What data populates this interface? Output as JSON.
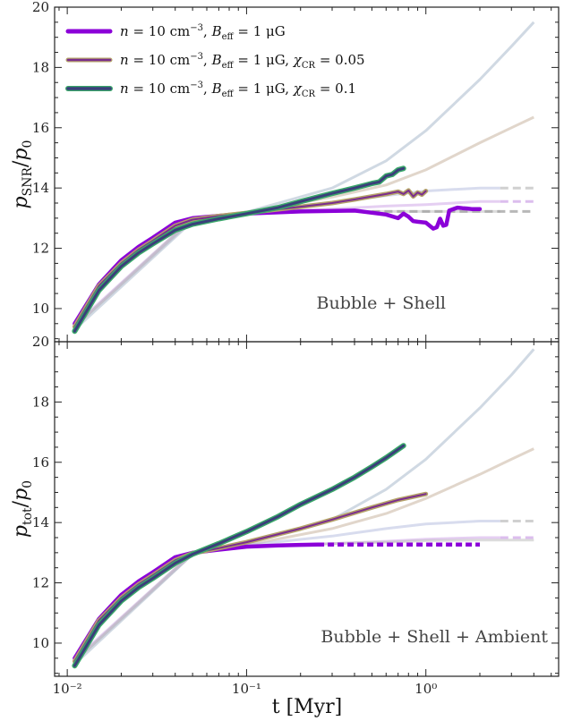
{
  "chart_data": [
    {
      "type": "line",
      "panel": "top",
      "ylabel": "p_SNR/p_0",
      "xscale": "log",
      "xlim": [
        0.0085,
        5.5
      ],
      "ylim": [
        8.9,
        20.0
      ],
      "yticks": [
        10,
        12,
        14,
        16,
        18,
        20
      ],
      "annotation": "Bubble + Shell",
      "legend": {
        "position": "top-left",
        "entries": [
          "n = 10 cm⁻³, B_eff = 1 μG",
          "n = 10 cm⁻³, B_eff = 1 μG, χ_CR = 0.05",
          "n = 10 cm⁻³, B_eff = 1 μG, χ_CR = 0.1"
        ]
      },
      "series": [
        {
          "color": "#8b00d8",
          "edge": "#8b00d8",
          "width": 4.5,
          "x": [
            0.011,
            0.015,
            0.02,
            0.025,
            0.03,
            0.04,
            0.05,
            0.07,
            0.1,
            0.2,
            0.4,
            0.5,
            0.6,
            0.7,
            0.75,
            0.8,
            0.85,
            0.9,
            1.0,
            1.1,
            1.15,
            1.2,
            1.25,
            1.3,
            1.35,
            1.5,
            1.6,
            1.7,
            1.8,
            1.9,
            2.0
          ],
          "y": [
            9.5,
            10.8,
            11.6,
            12.05,
            12.35,
            12.85,
            13.0,
            13.08,
            13.15,
            13.22,
            13.25,
            13.18,
            13.12,
            13.0,
            13.15,
            13.05,
            12.9,
            12.88,
            12.85,
            12.65,
            12.7,
            12.98,
            12.75,
            12.78,
            13.25,
            13.35,
            13.33,
            13.32,
            13.3,
            13.3,
            13.3
          ]
        },
        {
          "color": "#7b2d8e",
          "edge": "#b5a36a",
          "width": 3.5,
          "x": [
            0.011,
            0.015,
            0.02,
            0.025,
            0.03,
            0.04,
            0.05,
            0.07,
            0.1,
            0.2,
            0.3,
            0.4,
            0.5,
            0.6,
            0.7,
            0.75,
            0.8,
            0.85,
            0.9,
            0.95,
            1.0
          ],
          "y": [
            9.4,
            10.75,
            11.5,
            11.95,
            12.25,
            12.75,
            12.95,
            13.07,
            13.17,
            13.38,
            13.5,
            13.62,
            13.72,
            13.8,
            13.88,
            13.8,
            13.92,
            13.72,
            13.85,
            13.78,
            13.9
          ]
        },
        {
          "color": "#3a3f7a",
          "edge": "#3aa86a",
          "width": 4.5,
          "x": [
            0.011,
            0.015,
            0.02,
            0.025,
            0.03,
            0.04,
            0.05,
            0.07,
            0.1,
            0.15,
            0.2,
            0.3,
            0.4,
            0.5,
            0.55,
            0.6,
            0.65,
            0.7,
            0.75
          ],
          "y": [
            9.25,
            10.6,
            11.4,
            11.85,
            12.15,
            12.6,
            12.8,
            12.98,
            13.15,
            13.35,
            13.55,
            13.82,
            14.0,
            14.15,
            14.2,
            14.4,
            14.45,
            14.6,
            14.65
          ]
        }
      ]
    },
    {
      "type": "line",
      "panel": "bottom",
      "xlabel": "t [Myr]",
      "ylabel": "p_tot/p_0",
      "xscale": "log",
      "xlim": [
        0.0085,
        5.5
      ],
      "ylim": [
        8.9,
        20.0
      ],
      "yticks": [
        10,
        12,
        14,
        16,
        18,
        20
      ],
      "xticks": [
        "10⁻²",
        "10⁻¹",
        "10⁰"
      ],
      "annotation": "Bubble + Shell + Ambient",
      "series": [
        {
          "color": "#8b00d8",
          "edge": "#8b00d8",
          "width": 4.5,
          "x": [
            0.011,
            0.015,
            0.02,
            0.025,
            0.03,
            0.04,
            0.05,
            0.07,
            0.1,
            0.15,
            0.2,
            0.25
          ],
          "y": [
            9.5,
            10.8,
            11.6,
            12.05,
            12.35,
            12.85,
            13.0,
            13.1,
            13.2,
            13.24,
            13.26,
            13.27
          ]
        },
        {
          "color": "#7b2d8e",
          "edge": "#b5a36a",
          "width": 3.5,
          "x": [
            0.011,
            0.015,
            0.02,
            0.025,
            0.03,
            0.04,
            0.05,
            0.07,
            0.1,
            0.2,
            0.3,
            0.5,
            0.7,
            1.0
          ],
          "y": [
            9.4,
            10.75,
            11.5,
            11.95,
            12.25,
            12.75,
            12.98,
            13.15,
            13.35,
            13.8,
            14.1,
            14.5,
            14.75,
            14.95
          ]
        },
        {
          "color": "#3a3f7a",
          "edge": "#3aa86a",
          "width": 4.5,
          "x": [
            0.011,
            0.015,
            0.02,
            0.025,
            0.03,
            0.04,
            0.05,
            0.07,
            0.1,
            0.15,
            0.2,
            0.3,
            0.4,
            0.5,
            0.6,
            0.75
          ],
          "y": [
            9.25,
            10.6,
            11.4,
            11.85,
            12.15,
            12.65,
            12.95,
            13.3,
            13.7,
            14.2,
            14.6,
            15.1,
            15.5,
            15.85,
            16.15,
            16.55
          ]
        }
      ],
      "dashed": [
        {
          "color": "#8b00d8",
          "x": [
            0.25,
            2.0
          ],
          "y": [
            13.27,
            13.27
          ],
          "opacity": 1.0
        }
      ]
    }
  ],
  "faded": {
    "top": [
      {
        "color": "#aab9cc",
        "x": [
          0.011,
          0.05,
          0.1,
          0.3,
          0.6,
          1.0,
          2.0,
          3.0,
          4.0
        ],
        "y": [
          9.3,
          12.9,
          13.2,
          14.0,
          14.9,
          15.9,
          17.6,
          18.7,
          19.5
        ]
      },
      {
        "color": "#c8b5a0",
        "x": [
          0.011,
          0.05,
          0.1,
          0.3,
          0.6,
          1.0,
          2.0,
          3.0,
          4.0
        ],
        "y": [
          9.4,
          12.95,
          13.2,
          13.7,
          14.1,
          14.6,
          15.5,
          16.0,
          16.35
        ]
      },
      {
        "color": "#b8c0e0",
        "x": [
          0.011,
          0.05,
          0.1,
          0.3,
          0.6,
          1.0,
          2.0,
          2.6
        ],
        "y": [
          9.4,
          12.95,
          13.2,
          13.5,
          13.75,
          13.9,
          14.0,
          14.0
        ]
      },
      {
        "color": "#d0a8e8",
        "x": [
          0.011,
          0.05,
          0.1,
          0.3,
          0.6,
          1.0,
          2.0,
          2.6
        ],
        "y": [
          9.45,
          13.0,
          13.2,
          13.3,
          13.4,
          13.45,
          13.55,
          13.55
        ]
      },
      {
        "color": "#c0c0c0",
        "x": [
          0.011,
          0.05,
          0.1,
          0.3,
          0.6,
          1.0,
          2.0,
          2.6
        ],
        "y": [
          9.4,
          13.0,
          13.2,
          13.22,
          13.22,
          13.22,
          13.22,
          13.22
        ]
      }
    ],
    "top_dashed": [
      {
        "color": "#c0c0c0",
        "x": [
          2.6,
          4.0
        ],
        "y": [
          14.0,
          14.0
        ]
      },
      {
        "color": "#d0a8e8",
        "x": [
          2.6,
          4.0
        ],
        "y": [
          13.55,
          13.55
        ]
      },
      {
        "color": "#a0a0a0",
        "x": [
          0.5,
          4.0
        ],
        "y": [
          13.22,
          13.22
        ]
      }
    ],
    "bottom": [
      {
        "color": "#aab9cc",
        "x": [
          0.011,
          0.05,
          0.1,
          0.3,
          0.6,
          1.0,
          2.0,
          3.0,
          4.0
        ],
        "y": [
          9.3,
          12.95,
          13.3,
          14.1,
          15.1,
          16.1,
          17.8,
          18.9,
          19.75
        ]
      },
      {
        "color": "#c8b5a0",
        "x": [
          0.011,
          0.05,
          0.1,
          0.3,
          0.6,
          1.0,
          2.0,
          3.0,
          4.0
        ],
        "y": [
          9.4,
          12.95,
          13.25,
          13.8,
          14.3,
          14.8,
          15.6,
          16.1,
          16.45
        ]
      },
      {
        "color": "#b8c0e0",
        "x": [
          0.011,
          0.05,
          0.1,
          0.3,
          0.6,
          1.0,
          2.0,
          2.6
        ],
        "y": [
          9.4,
          12.95,
          13.25,
          13.55,
          13.8,
          13.95,
          14.05,
          14.05
        ]
      },
      {
        "color": "#d0a8e8",
        "x": [
          0.011,
          0.05,
          0.1,
          0.3,
          0.6,
          1.0,
          2.0,
          2.6
        ],
        "y": [
          9.45,
          13.0,
          13.22,
          13.3,
          13.38,
          13.45,
          13.5,
          13.5
        ]
      },
      {
        "color": "#c0c0c0",
        "x": [
          0.011,
          0.05,
          0.1,
          0.3,
          0.6,
          1.0,
          2.0,
          4.0
        ],
        "y": [
          9.4,
          13.0,
          13.2,
          13.3,
          13.35,
          13.4,
          13.42,
          13.42
        ]
      }
    ],
    "bottom_dashed": [
      {
        "color": "#c0c0c0",
        "x": [
          2.6,
          4.0
        ],
        "y": [
          14.05,
          14.05
        ]
      },
      {
        "color": "#d0a8e8",
        "x": [
          2.6,
          4.0
        ],
        "y": [
          13.5,
          13.5
        ]
      }
    ]
  }
}
